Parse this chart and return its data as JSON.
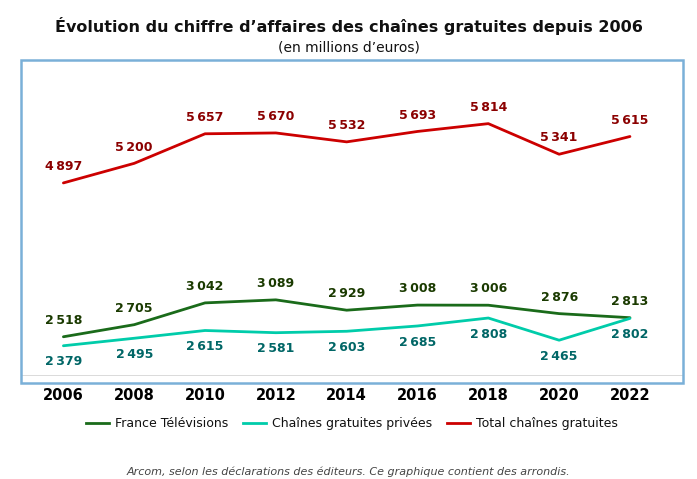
{
  "title_line1": "Évolution du chiffre d’affaires des chaînes gratuites depuis 2006",
  "title_line2": "(en millions d’euros)",
  "footnote": "Arcom, selon les déclarations des éditeurs. Ce graphique contient des arrondis.",
  "years": [
    2006,
    2008,
    2010,
    2012,
    2014,
    2016,
    2018,
    2020,
    2022
  ],
  "france_televisions": [
    2518,
    2705,
    3042,
    3089,
    2929,
    3008,
    3006,
    2876,
    2813
  ],
  "chaines_privees": [
    2379,
    2495,
    2615,
    2581,
    2603,
    2685,
    2808,
    2465,
    2802
  ],
  "total_chaines": [
    4897,
    5200,
    5657,
    5670,
    5532,
    5693,
    5814,
    5341,
    5615
  ],
  "color_france": "#1a6b1a",
  "color_privees": "#00ccaa",
  "color_total": "#cc0000",
  "label_color_france": "#1a1a00",
  "label_color_privees": "#1a1a00",
  "label_color_total": "#1a1a00",
  "legend_labels": [
    "France Télévisions",
    "Chaînes gratuites privées",
    "Total chaînes gratuites"
  ],
  "ylim_min": 1800,
  "ylim_max": 6800,
  "box_color": "#7ab0d8",
  "background_color": "#ffffff",
  "label_fontsize": 9.0,
  "title1_fontsize": 11.5,
  "title2_fontsize": 10.0,
  "xtick_fontsize": 10.5,
  "legend_fontsize": 9.0,
  "footnote_fontsize": 8.0
}
